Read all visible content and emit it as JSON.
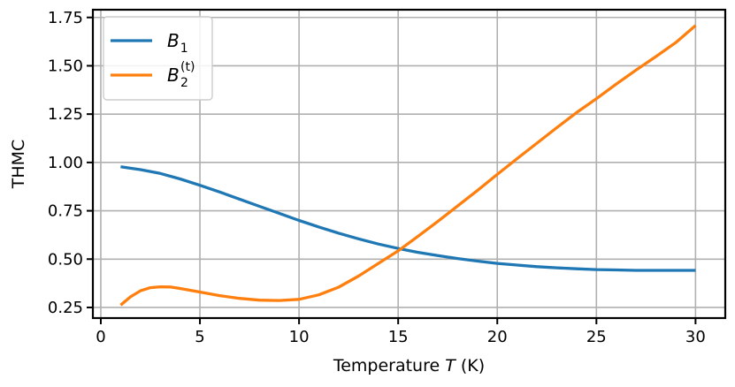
{
  "chart_data": {
    "type": "line",
    "xlabel": "Temperature T (K)",
    "xlabel_parts": {
      "pre": "Temperature ",
      "var": "T",
      "post": " (K)"
    },
    "ylabel": "THMC",
    "xlim": [
      -0.4,
      31.5
    ],
    "ylim": [
      0.195,
      1.79
    ],
    "x_ticks": [
      0,
      5,
      10,
      15,
      20,
      25,
      30
    ],
    "y_ticks": [
      0.25,
      0.5,
      0.75,
      1.0,
      1.25,
      1.5,
      1.75
    ],
    "y_tick_labels": [
      "0.25",
      "0.50",
      "0.75",
      "1.00",
      "1.25",
      "1.50",
      "1.75"
    ],
    "grid": true,
    "legend_position": "top-left",
    "series": [
      {
        "name": "B_1",
        "legend": {
          "base": "B",
          "sub": "1",
          "sup": ""
        },
        "color": "#1f77b4",
        "x": [
          1,
          2,
          3,
          4,
          5,
          6,
          7,
          8,
          9,
          10,
          11,
          12,
          13,
          14,
          15,
          16,
          17,
          18,
          19,
          20,
          21,
          22,
          23,
          24,
          25,
          26,
          27,
          28,
          29,
          30
        ],
        "y": [
          0.978,
          0.963,
          0.943,
          0.915,
          0.882,
          0.847,
          0.81,
          0.773,
          0.737,
          0.7,
          0.666,
          0.634,
          0.605,
          0.578,
          0.555,
          0.535,
          0.518,
          0.503,
          0.49,
          0.478,
          0.469,
          0.461,
          0.455,
          0.45,
          0.446,
          0.444,
          0.442,
          0.442,
          0.442,
          0.442
        ]
      },
      {
        "name": "B_2^(t)",
        "legend": {
          "base": "B",
          "sub": "2",
          "sup": "(t)"
        },
        "color": "#ff7f0e",
        "x": [
          1,
          1.5,
          2,
          2.5,
          3,
          3.5,
          4,
          5,
          6,
          7,
          8,
          9,
          10,
          11,
          12,
          13,
          14,
          15,
          16,
          17,
          18,
          19,
          20,
          21,
          22,
          23,
          24,
          25,
          26,
          27,
          28,
          29,
          30
        ],
        "y": [
          0.262,
          0.305,
          0.336,
          0.352,
          0.357,
          0.356,
          0.348,
          0.33,
          0.311,
          0.297,
          0.288,
          0.286,
          0.292,
          0.315,
          0.355,
          0.412,
          0.478,
          0.543,
          0.618,
          0.695,
          0.775,
          0.855,
          0.938,
          1.02,
          1.1,
          1.18,
          1.258,
          1.33,
          1.405,
          1.478,
          1.548,
          1.62,
          1.708
        ]
      }
    ]
  }
}
